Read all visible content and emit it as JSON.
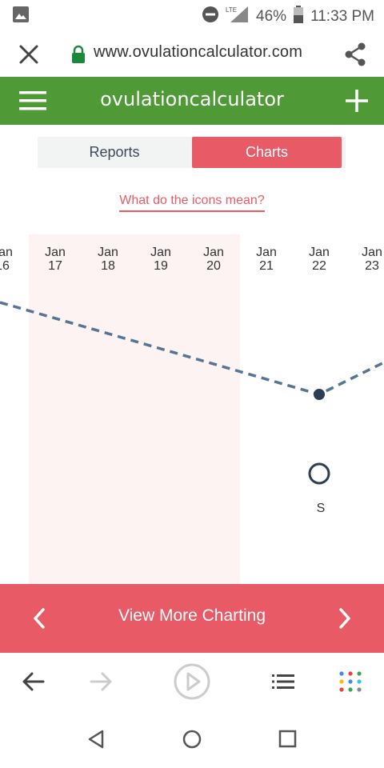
{
  "status_bar": {
    "battery": "46%",
    "time": "11:33 PM",
    "network": "LTE"
  },
  "browser": {
    "url": "www.ovulationcalculator.com"
  },
  "header": {
    "title": "ovulationcalculator"
  },
  "tabs": [
    {
      "label": "Reports"
    },
    {
      "label": "Charts"
    }
  ],
  "icons_link": "What do the icons mean?",
  "chart_data": {
    "type": "line",
    "dates": [
      {
        "month": "Jan",
        "day": "16"
      },
      {
        "month": "Jan",
        "day": "17"
      },
      {
        "month": "Jan",
        "day": "18"
      },
      {
        "month": "Jan",
        "day": "19"
      },
      {
        "month": "Jan",
        "day": "20"
      },
      {
        "month": "Jan",
        "day": "21"
      },
      {
        "month": "Jan",
        "day": "22"
      },
      {
        "month": "Jan",
        "day": "23"
      }
    ],
    "highlight_range": [
      "Jan 17",
      "Jan 20"
    ],
    "point_date": "Jan 22",
    "marker": {
      "date": "Jan 22",
      "label": "S"
    },
    "colors": {
      "line": "#567596",
      "point": "#2c3e55",
      "highlight": "#fdf3f3"
    }
  },
  "footer": {
    "label": "View More Charting"
  },
  "colors": {
    "brand_green": "#4f9a36",
    "accent": "#e85a66"
  }
}
